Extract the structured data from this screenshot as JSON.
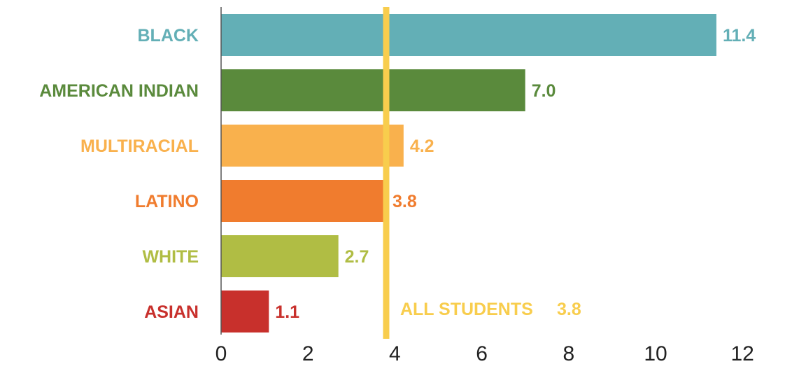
{
  "chart_data": {
    "type": "bar",
    "orientation": "horizontal",
    "categories": [
      "BLACK",
      "AMERICAN INDIAN",
      "MULTIRACIAL",
      "LATINO",
      "WHITE",
      "ASIAN"
    ],
    "values": [
      11.4,
      7.0,
      4.2,
      3.8,
      2.7,
      1.1
    ],
    "value_labels": [
      "11.4",
      "7.0",
      "4.2",
      "3.8",
      "2.7",
      "1.1"
    ],
    "colors": [
      "#63afb6",
      "#5a8a3c",
      "#f9b14d",
      "#f07c2e",
      "#b0bd44",
      "#c8302c"
    ],
    "title": "",
    "xlabel": "",
    "ylabel": "",
    "xlim": [
      0,
      12
    ],
    "x_ticks": [
      "0",
      "2",
      "4",
      "6",
      "8",
      "10",
      "12"
    ],
    "grid": false,
    "reference_line": {
      "value": 3.8,
      "label": "ALL STUDENTS",
      "value_label": "3.8",
      "color": "#f8cd4d"
    }
  }
}
